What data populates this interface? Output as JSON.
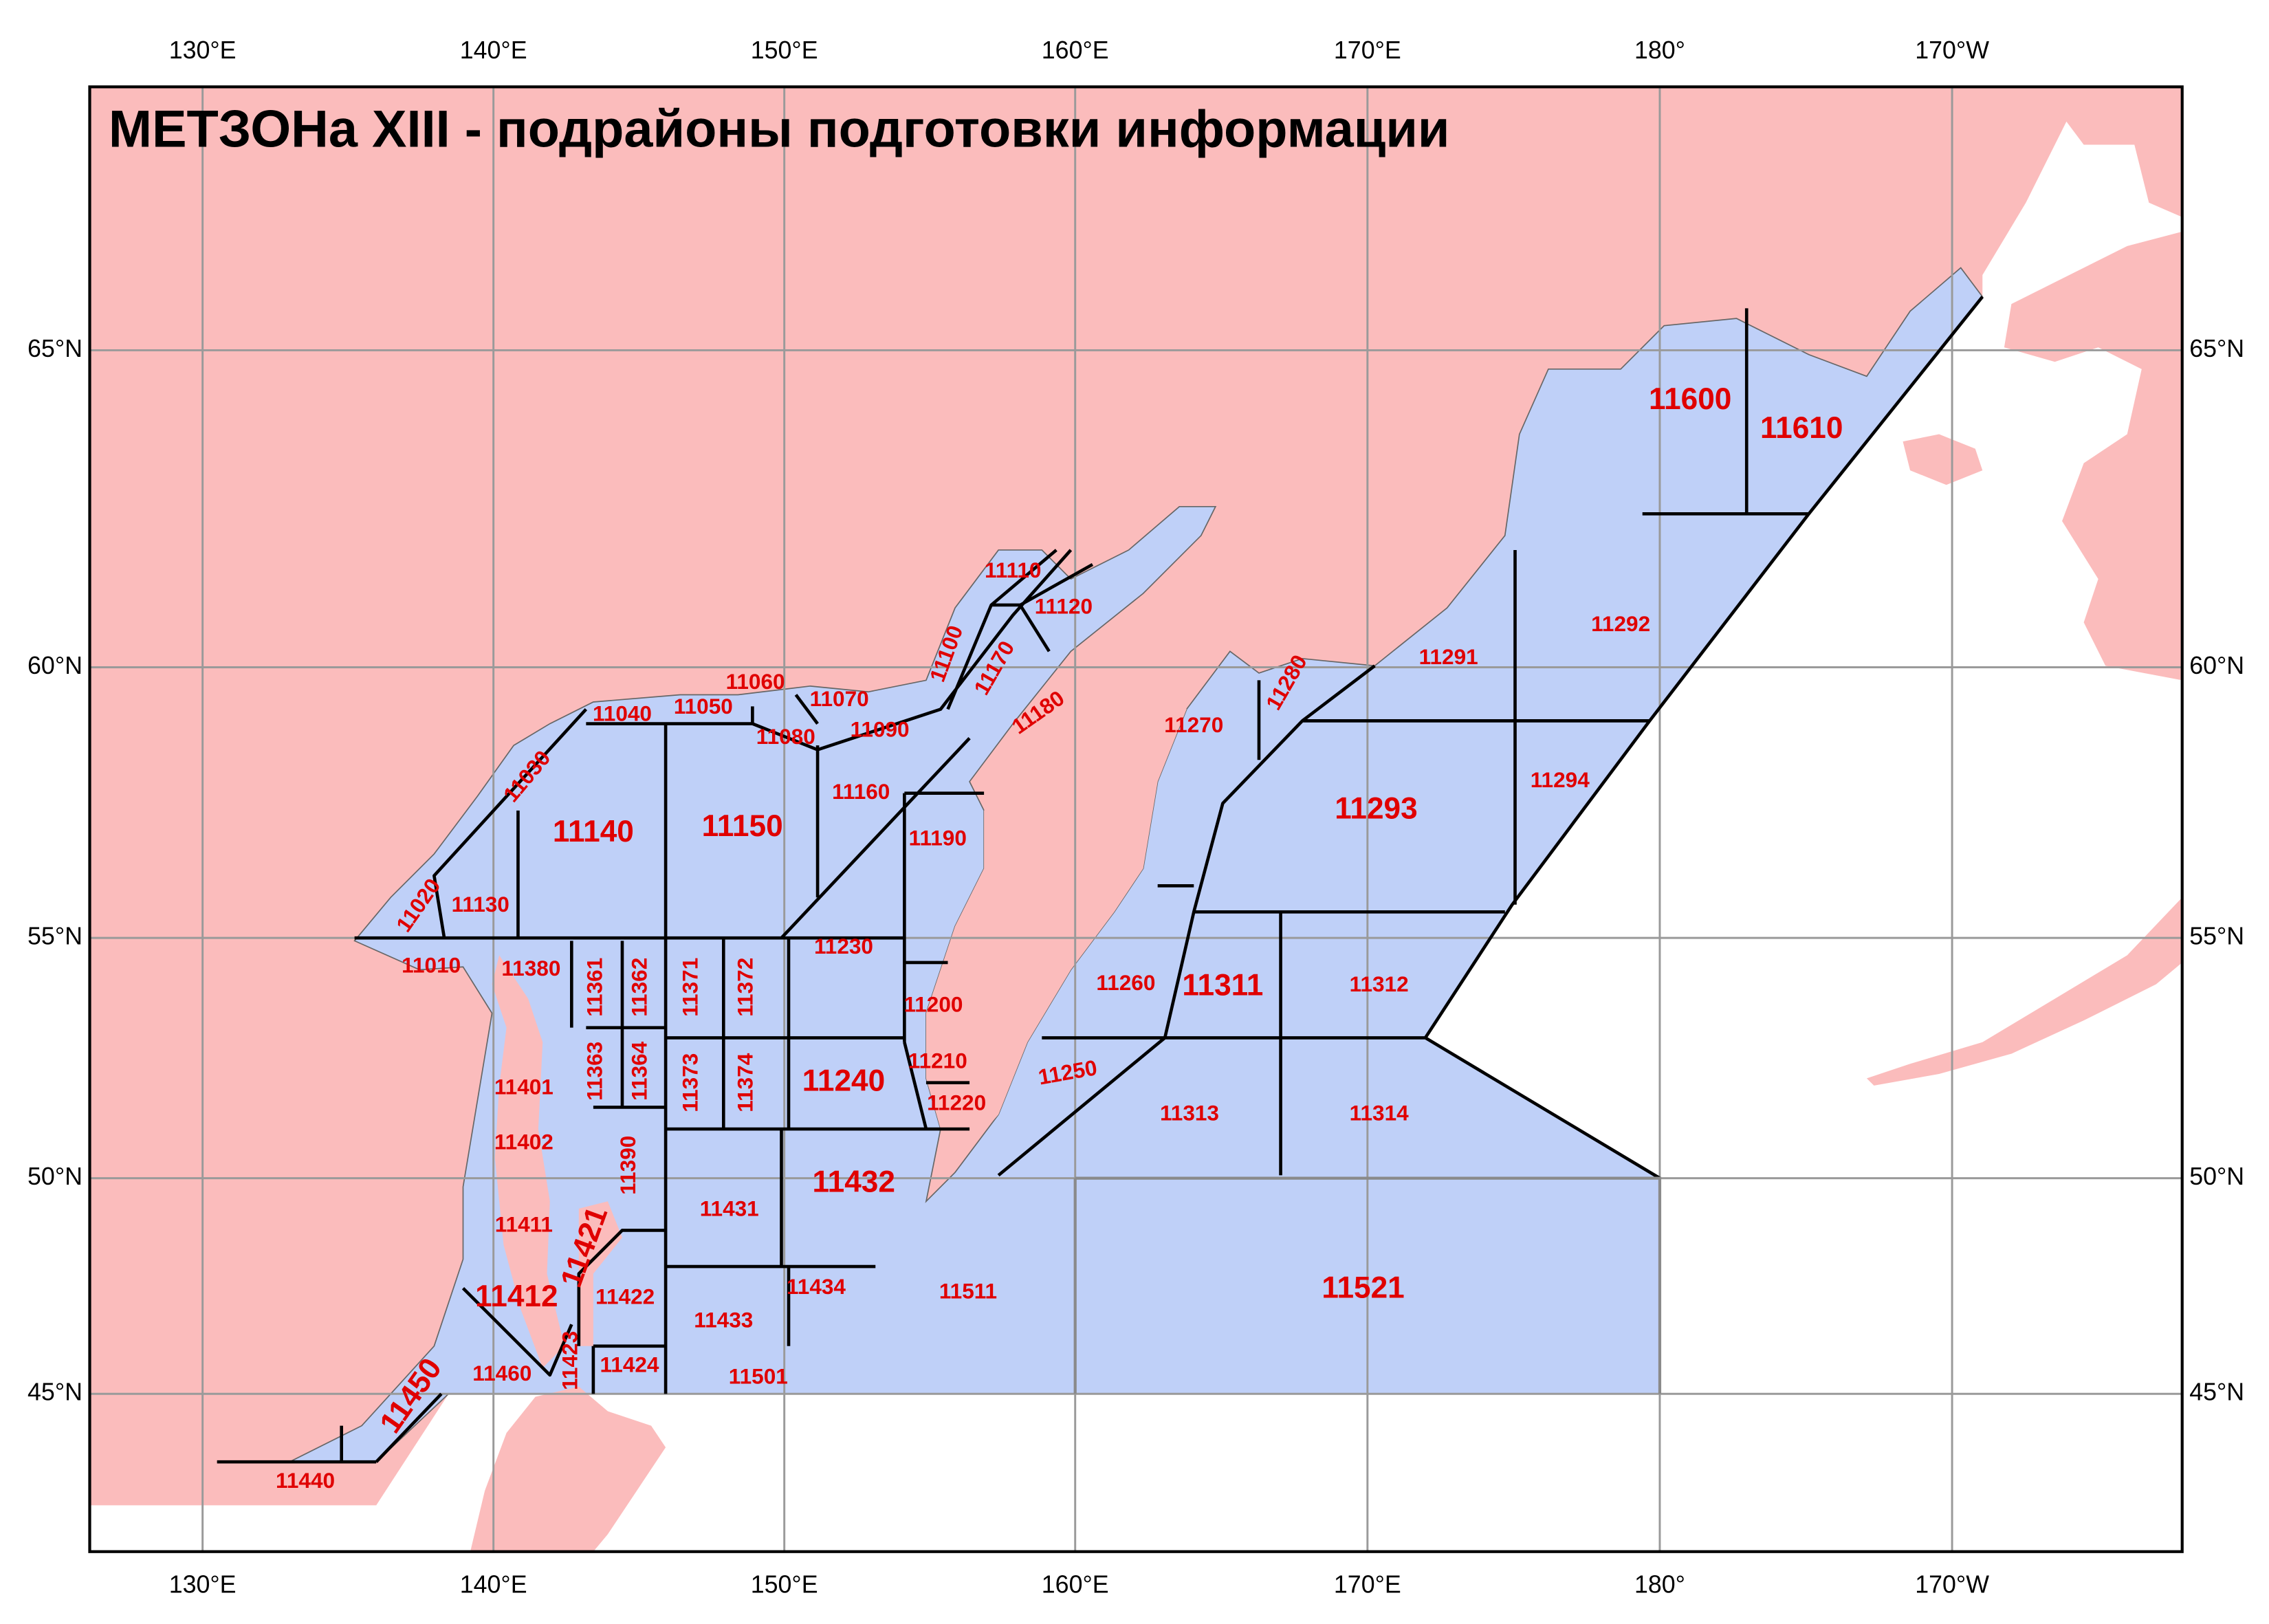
{
  "title": "МЕТЗОНа XIII - подрайоны подготовки информации",
  "longitude_labels": {
    "top": [
      "130°E",
      "140°E",
      "150°E",
      "160°E",
      "170°E",
      "180°",
      "170°W"
    ],
    "bottom": [
      "130°E",
      "140°E",
      "150°E",
      "160°E",
      "170°E",
      "180°",
      "170°W"
    ]
  },
  "latitude_labels": {
    "left": [
      "65°N",
      "60°N",
      "55°N",
      "50°N",
      "45°N"
    ],
    "right": [
      "65°N",
      "60°N",
      "55°N",
      "50°N",
      "45°N"
    ]
  },
  "zones": [
    "11110",
    "11120",
    "11100",
    "11170",
    "11180",
    "11060",
    "11070",
    "11040",
    "11050",
    "11080",
    "11090",
    "11030",
    "11140",
    "11150",
    "11160",
    "11190",
    "11020",
    "11130",
    "11230",
    "11010",
    "11380",
    "11361",
    "11362",
    "11371",
    "11372",
    "11200",
    "11210",
    "11220",
    "11240",
    "11401",
    "11363",
    "11364",
    "11373",
    "11374",
    "11402",
    "11390",
    "11431",
    "11432",
    "11411",
    "11421",
    "11412",
    "11422",
    "11433",
    "11434",
    "11423",
    "11424",
    "11460",
    "11501",
    "11450",
    "11440",
    "11511",
    "11521",
    "11260",
    "11311",
    "11312",
    "11250",
    "11313",
    "11314",
    "11270",
    "11280",
    "11291",
    "11292",
    "11293",
    "11294",
    "11600",
    "11610"
  ]
}
